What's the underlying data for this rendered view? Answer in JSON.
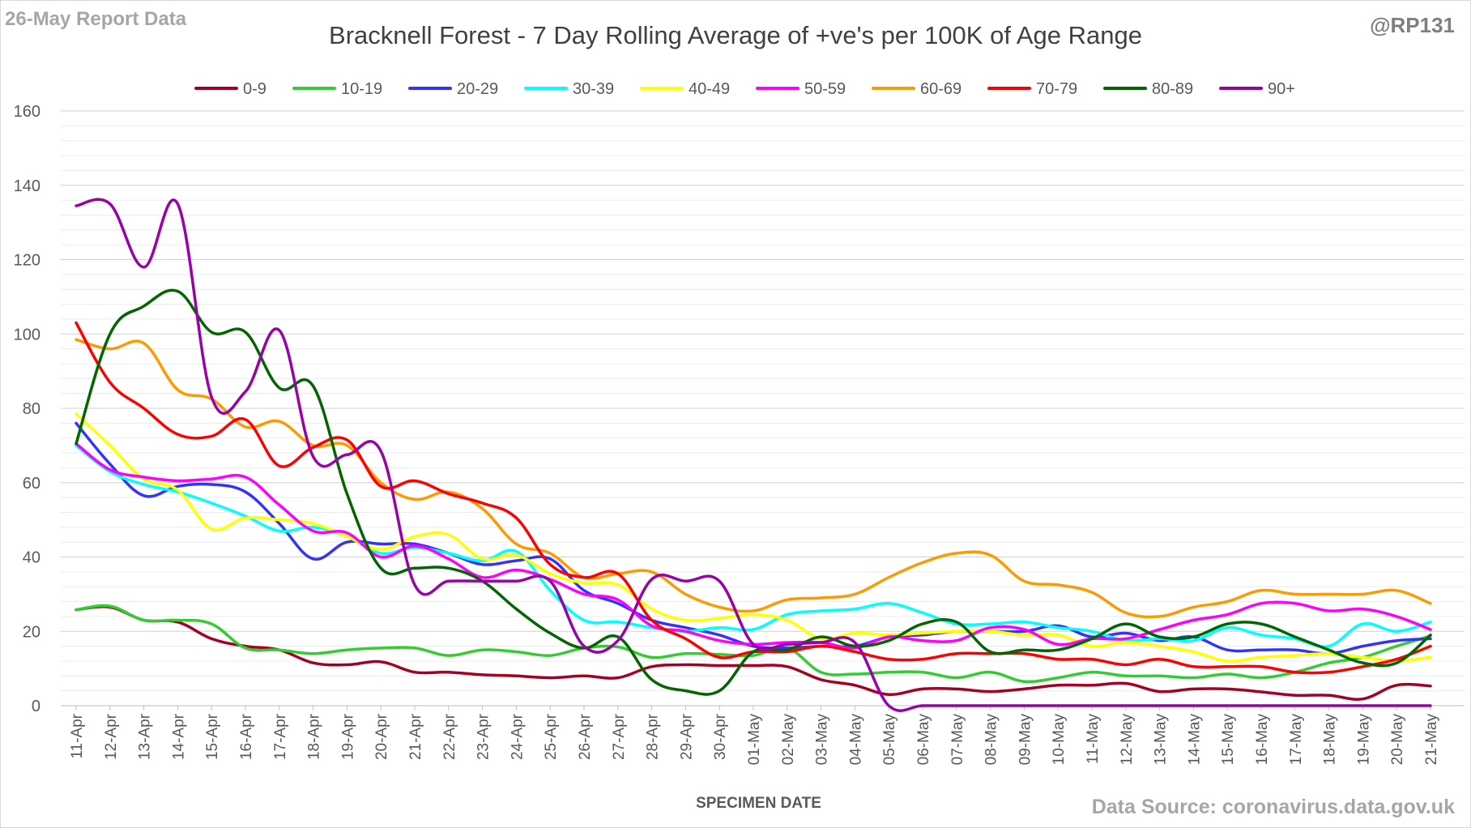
{
  "report_label": "26-May Report Data",
  "handle": "@RP131",
  "source_label": "Data Source: coronavirus.data.gov.uk",
  "chart_data": {
    "type": "line",
    "title": "Bracknell Forest - 7 Day Rolling Average of +ve's per 100K of Age Range",
    "xlabel": "SPECIMEN DATE",
    "ylabel": "",
    "ylim": [
      0,
      160
    ],
    "yticks": [
      0,
      20,
      40,
      60,
      80,
      100,
      120,
      140,
      160
    ],
    "grid": true,
    "legend": "top",
    "categories": [
      "11-Apr",
      "12-Apr",
      "13-Apr",
      "14-Apr",
      "15-Apr",
      "16-Apr",
      "17-Apr",
      "18-Apr",
      "19-Apr",
      "20-Apr",
      "21-Apr",
      "22-Apr",
      "23-Apr",
      "24-Apr",
      "25-Apr",
      "26-Apr",
      "27-Apr",
      "28-Apr",
      "29-Apr",
      "30-Apr",
      "01-May",
      "02-May",
      "03-May",
      "04-May",
      "05-May",
      "06-May",
      "07-May",
      "08-May",
      "09-May",
      "10-May",
      "11-May",
      "12-May",
      "13-May",
      "14-May",
      "15-May",
      "16-May",
      "17-May",
      "18-May",
      "19-May",
      "20-May",
      "21-May"
    ],
    "series": [
      {
        "name": "0-9",
        "color": "#a50021",
        "values": [
          25.8,
          26.5,
          23,
          22.5,
          18,
          16,
          15,
          11.5,
          11,
          11.8,
          9,
          9,
          8.3,
          8,
          7.5,
          8,
          7.5,
          10.5,
          11,
          10.8,
          10.8,
          10.5,
          7,
          5.5,
          3,
          4.5,
          4.5,
          3.8,
          4.5,
          5.5,
          5.5,
          6,
          3.8,
          4.5,
          4.5,
          3.7,
          2.8,
          2.8,
          1.8,
          5.5,
          5.3
        ]
      },
      {
        "name": "10-19",
        "color": "#33cc33",
        "values": [
          25.8,
          26.8,
          23,
          23,
          22,
          15.5,
          15,
          14,
          15,
          15.5,
          15.5,
          13.5,
          15,
          14.5,
          13.5,
          15.5,
          15.8,
          13,
          14,
          13.8,
          13.5,
          15.5,
          9,
          8.5,
          9,
          9,
          7.5,
          9,
          6.5,
          7.5,
          9,
          8,
          8,
          7.5,
          8.5,
          7.5,
          9,
          11.5,
          13,
          16,
          18.8
        ]
      },
      {
        "name": "20-29",
        "color": "#3333ff",
        "values": [
          76,
          65,
          56.5,
          59,
          59.5,
          57.5,
          49,
          39.5,
          44,
          43.5,
          43.5,
          41,
          38,
          39,
          39.5,
          31,
          27.5,
          23,
          21,
          19,
          16,
          15.5,
          16,
          16,
          18.5,
          19,
          20,
          20,
          20,
          21.5,
          18.5,
          19.5,
          17.5,
          18.5,
          15,
          15,
          15,
          14,
          16,
          17.5,
          18
        ]
      },
      {
        "name": "30-39",
        "color": "#00ffff",
        "values": [
          70,
          63,
          59.5,
          57.5,
          54.5,
          51,
          47,
          48,
          45.5,
          41,
          42.5,
          41,
          39,
          41.5,
          31,
          23,
          22.5,
          21,
          20,
          21,
          20.5,
          24.5,
          25.5,
          26,
          27.5,
          25,
          22,
          22,
          22.5,
          21,
          20,
          17.5,
          18,
          17.5,
          21,
          19,
          18,
          16,
          22,
          20,
          22.5
        ]
      },
      {
        "name": "40-49",
        "color": "#ffff00",
        "values": [
          78.5,
          70,
          61,
          58,
          47.5,
          50.5,
          50,
          49,
          45.5,
          42,
          45.5,
          46,
          39.5,
          40.5,
          35.5,
          33,
          32.5,
          26,
          23,
          23.5,
          24.5,
          23,
          18,
          19.5,
          19,
          19.5,
          20,
          20,
          19,
          19,
          16,
          17,
          16,
          14.5,
          12,
          13,
          13.5,
          14,
          13,
          12,
          13
        ]
      },
      {
        "name": "50-59",
        "color": "#ff00ff",
        "values": [
          70.5,
          63.5,
          61.5,
          60.5,
          61,
          61.5,
          54,
          47,
          46.5,
          40,
          43,
          39.5,
          34.5,
          36.5,
          34,
          30,
          28.5,
          21.5,
          20,
          17.5,
          16.5,
          17,
          17,
          15.5,
          18.5,
          17.5,
          17.5,
          21,
          20.5,
          16.5,
          18,
          18,
          20.5,
          23,
          24.5,
          27.5,
          27.5,
          25.5,
          26,
          24,
          20.5
        ]
      },
      {
        "name": "60-69",
        "color": "#ff9900",
        "values": [
          98.5,
          96,
          97.5,
          85,
          82.5,
          75,
          76.5,
          70,
          70,
          60,
          55.5,
          57.5,
          53,
          43.5,
          41,
          34.5,
          35.5,
          36,
          30,
          26.5,
          25.5,
          28.5,
          29,
          30,
          34.5,
          38.5,
          41,
          40.5,
          33.5,
          32.5,
          30.5,
          25,
          24,
          26.5,
          28,
          31,
          30,
          30,
          30,
          31,
          27.5
        ]
      },
      {
        "name": "70-79",
        "color": "#ff0000",
        "values": [
          103,
          87,
          80,
          73,
          72.5,
          77,
          64.5,
          69.5,
          71.5,
          59,
          60.5,
          57,
          54.5,
          50.5,
          38,
          34.5,
          35.5,
          23,
          18,
          13,
          14.5,
          14.5,
          16,
          14.5,
          12.5,
          12.5,
          14,
          14,
          14,
          12.5,
          12.5,
          11,
          12.5,
          10.5,
          10.5,
          10.5,
          9,
          9,
          10.5,
          12.5,
          16
        ]
      },
      {
        "name": "80-89",
        "color": "#006600",
        "values": [
          70.5,
          100,
          107.5,
          111.5,
          100.5,
          100.5,
          85.5,
          86,
          57,
          37,
          37,
          37,
          33.5,
          26,
          19.5,
          15.5,
          18.5,
          7,
          4,
          4,
          14.5,
          15,
          18.5,
          16,
          17.5,
          22,
          22.5,
          14.5,
          15,
          15,
          18,
          22,
          18.5,
          18.5,
          22,
          22,
          18.5,
          15,
          11.5,
          11.5,
          19
        ]
      },
      {
        "name": "90+",
        "color": "#9900aa",
        "values": [
          134.5,
          135,
          118,
          135,
          83,
          84.5,
          101,
          67,
          67.5,
          68.5,
          32.5,
          33.5,
          33.5,
          33.5,
          33.5,
          16,
          17.5,
          34,
          33.5,
          33.5,
          16.5,
          16.5,
          17,
          17,
          0,
          0,
          0,
          0,
          0,
          0,
          0,
          0,
          0,
          0,
          0,
          0,
          0,
          0,
          0,
          0,
          0
        ]
      }
    ]
  }
}
